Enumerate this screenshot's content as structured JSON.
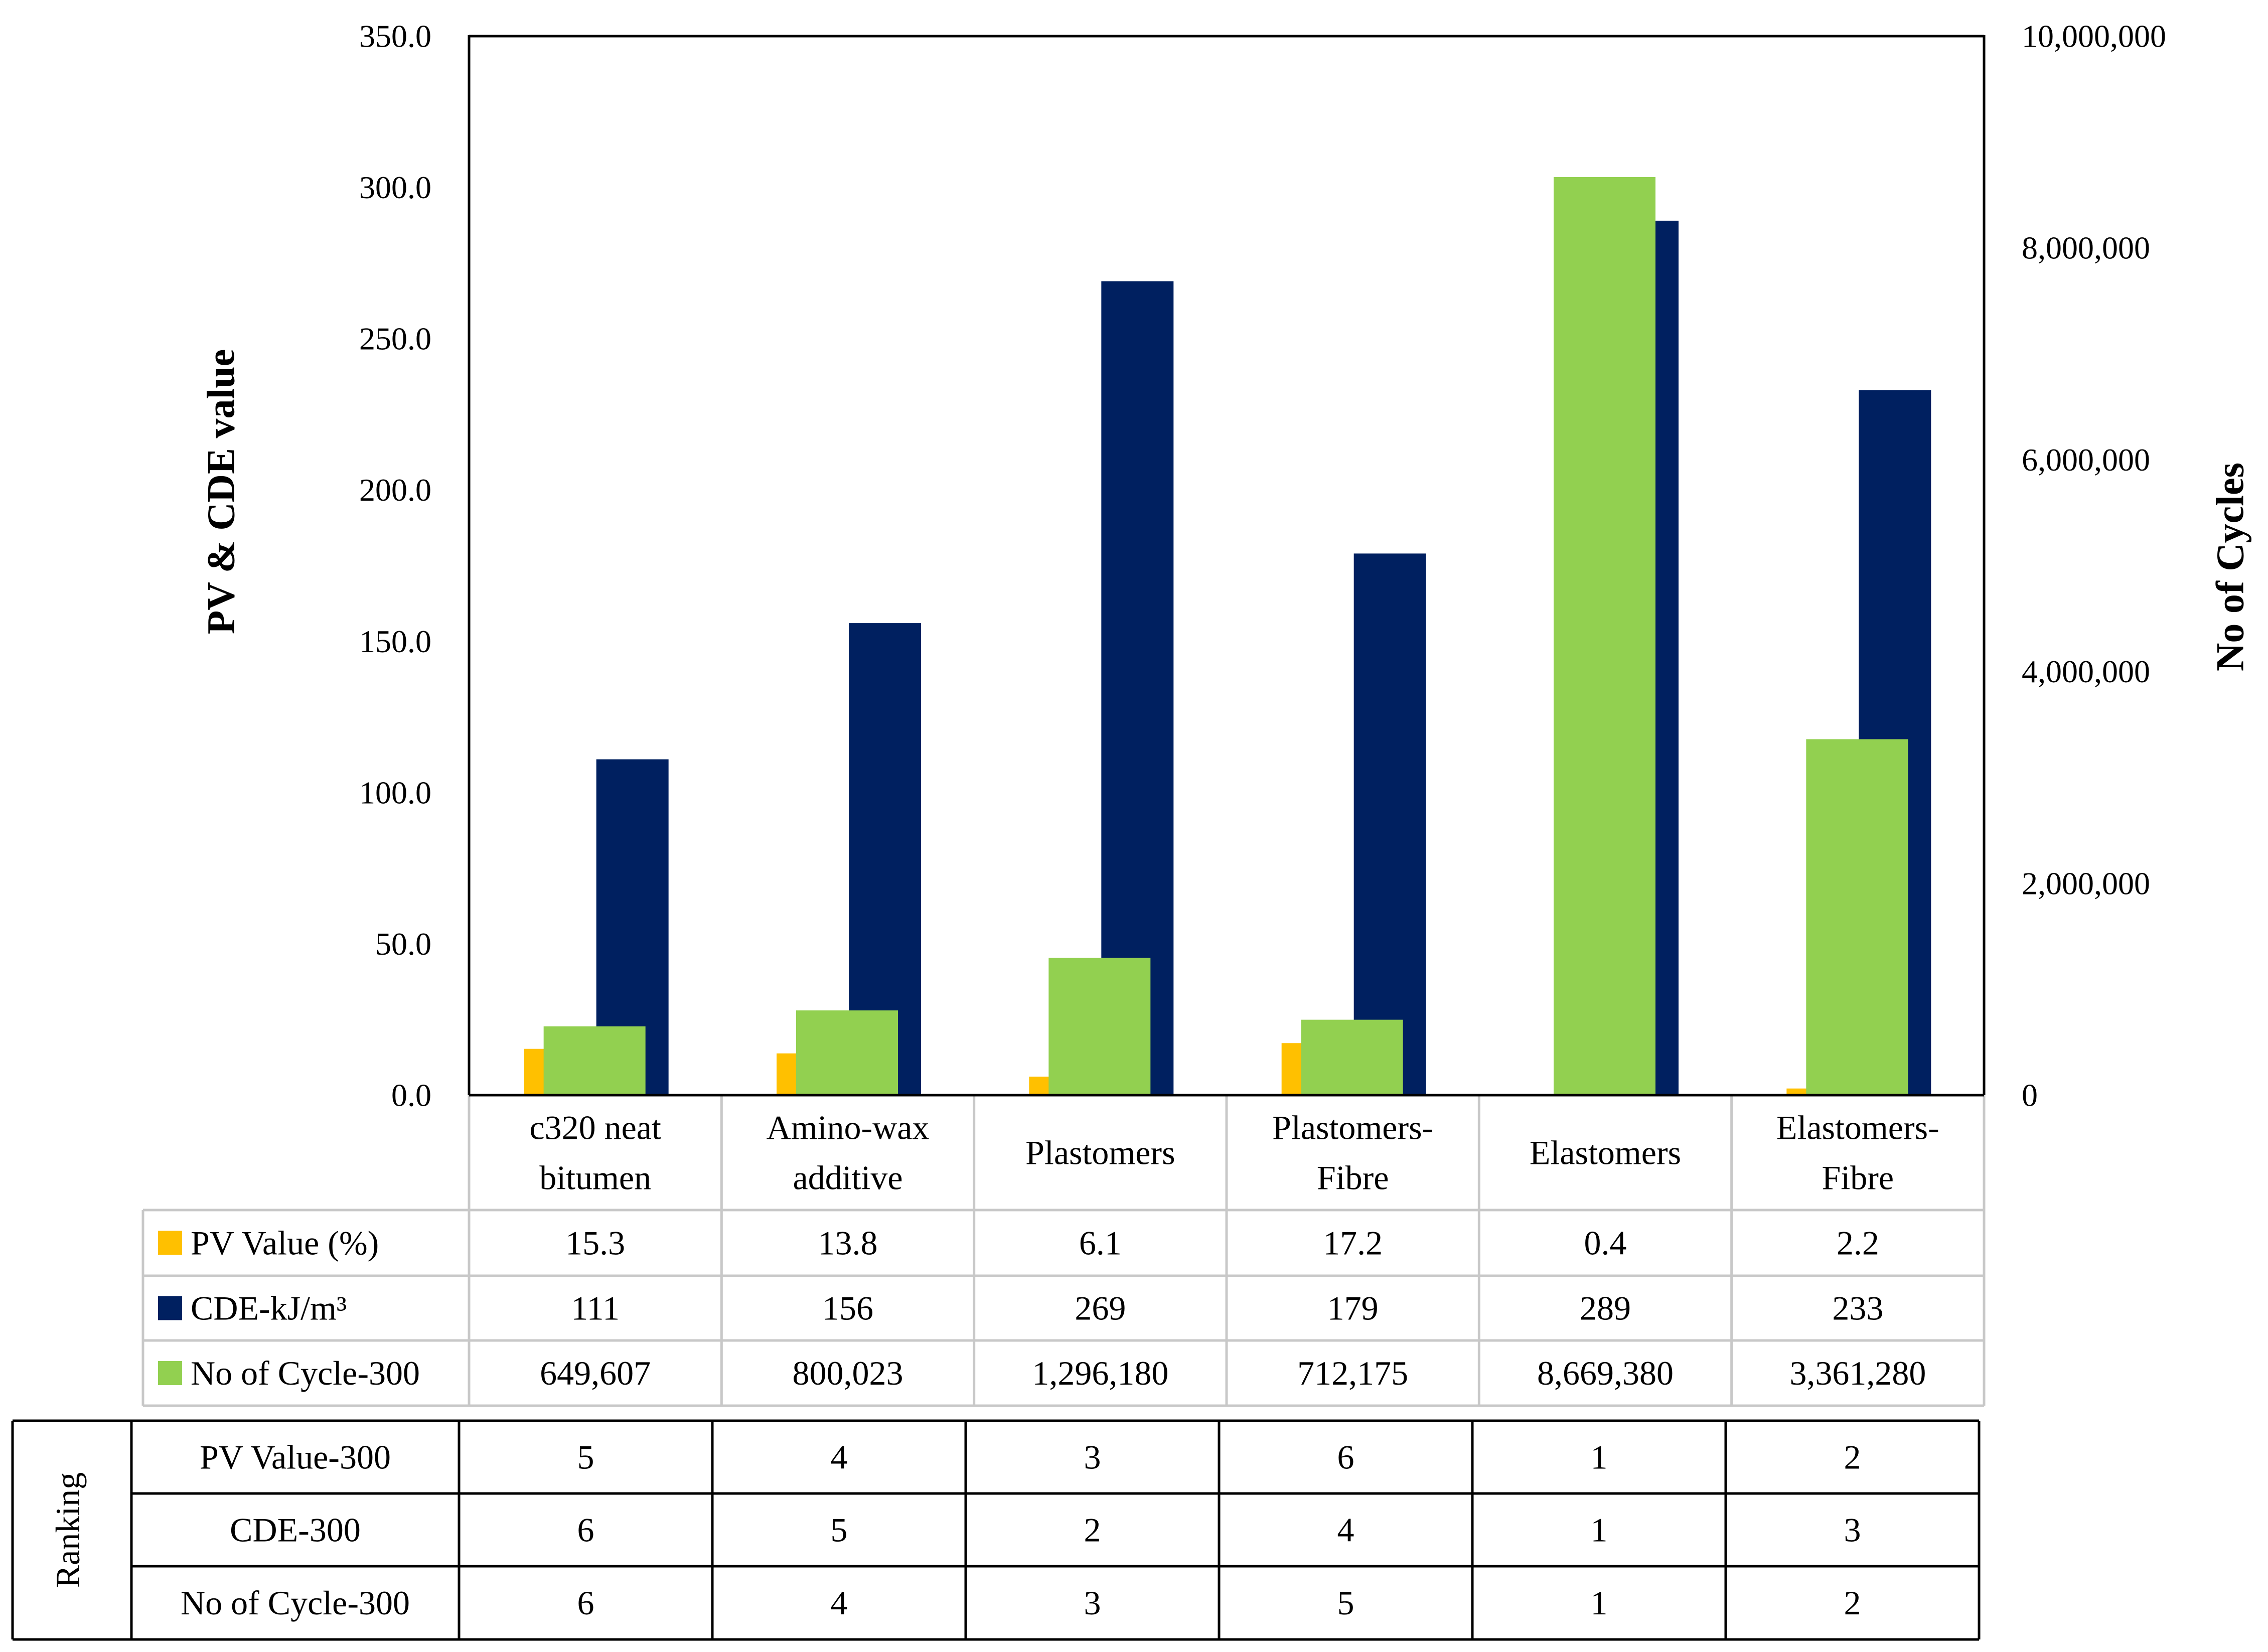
{
  "chart_data": {
    "type": "bar",
    "categories": [
      [
        "c320 neat",
        "bitumen"
      ],
      [
        "Amino-wax",
        "additive"
      ],
      [
        "Plastomers"
      ],
      [
        "Plastomers-",
        "Fibre"
      ],
      [
        "Elastomers"
      ],
      [
        "Elastomers-",
        "Fibre"
      ]
    ],
    "left_axis": {
      "title": "PV & CDE value",
      "ylim": [
        0,
        350
      ],
      "ticks": [
        "0.0",
        "50.0",
        "100.0",
        "150.0",
        "200.0",
        "250.0",
        "300.0",
        "350.0"
      ]
    },
    "right_axis": {
      "title": "No of  Cycles",
      "ylim": [
        0,
        10000000
      ],
      "ticks": [
        "0",
        "2,000,000",
        "4,000,000",
        "6,000,000",
        "8,000,000",
        "10,000,000"
      ]
    },
    "series": [
      {
        "name": "PV Value (%)",
        "axis": "left",
        "color": "#FFC000",
        "values": [
          15.3,
          13.8,
          6.1,
          17.2,
          0.4,
          2.2
        ],
        "labels": [
          "15.3",
          "13.8",
          "6.1",
          "17.2",
          "0.4",
          "2.2"
        ]
      },
      {
        "name": "CDE-kJ/m³",
        "axis": "left",
        "color": "#002060",
        "values": [
          111,
          156,
          269,
          179,
          289,
          233
        ],
        "labels": [
          "111",
          "156",
          "269",
          "179",
          "289",
          "233"
        ]
      },
      {
        "name": "No of Cycle-300",
        "axis": "right",
        "color": "#92D050",
        "values": [
          649607,
          800023,
          1296180,
          712175,
          8669380,
          3361280
        ],
        "labels": [
          "649,607",
          "800,023",
          "1,296,180",
          "712,175",
          "8,669,380",
          "3,361,280"
        ]
      }
    ],
    "ranking": {
      "title": "Ranking",
      "rows": [
        {
          "label": "PV Value-300",
          "values": [
            "5",
            "4",
            "3",
            "6",
            "1",
            "2"
          ]
        },
        {
          "label": "CDE-300",
          "values": [
            "6",
            "5",
            "2",
            "4",
            "1",
            "3"
          ]
        },
        {
          "label": "No of Cycle-300",
          "values": [
            "6",
            "4",
            "3",
            "5",
            "1",
            "2"
          ]
        }
      ]
    }
  }
}
